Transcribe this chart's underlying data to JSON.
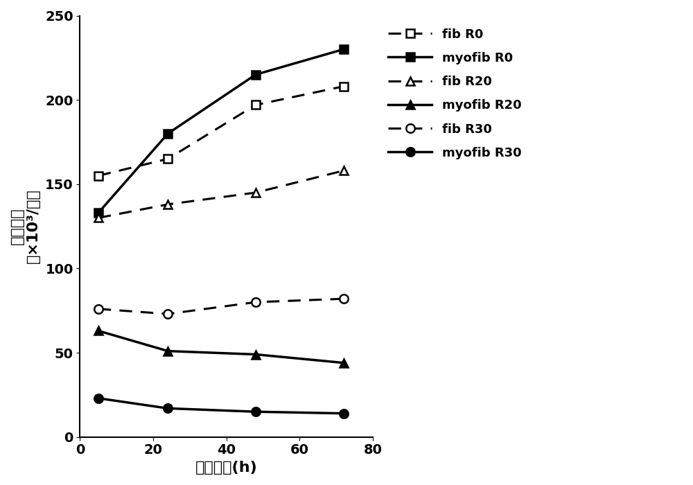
{
  "x": [
    5,
    24,
    48,
    72
  ],
  "series": {
    "fib R0": {
      "y": [
        155,
        165,
        197,
        208
      ],
      "linestyle": "--",
      "marker": "s",
      "markerfacecolor": "white",
      "linewidth": 2.2,
      "markersize": 9,
      "color": "black"
    },
    "myofib R0": {
      "y": [
        133,
        180,
        215,
        230
      ],
      "linestyle": "-",
      "marker": "s",
      "markerfacecolor": "black",
      "linewidth": 2.5,
      "markersize": 9,
      "color": "black"
    },
    "fib R20": {
      "y": [
        130,
        138,
        145,
        158
      ],
      "linestyle": "--",
      "marker": "^",
      "markerfacecolor": "white",
      "linewidth": 2.2,
      "markersize": 9,
      "color": "black"
    },
    "myofib R20": {
      "y": [
        63,
        51,
        49,
        44
      ],
      "linestyle": "-",
      "marker": "^",
      "markerfacecolor": "black",
      "linewidth": 2.5,
      "markersize": 9,
      "color": "black"
    },
    "fib R30": {
      "y": [
        76,
        73,
        80,
        82
      ],
      "linestyle": "--",
      "marker": "o",
      "markerfacecolor": "white",
      "linewidth": 2.2,
      "markersize": 9,
      "color": "black"
    },
    "myofib R30": {
      "y": [
        23,
        17,
        15,
        14
      ],
      "linestyle": "-",
      "marker": "o",
      "markerfacecolor": "black",
      "linewidth": 2.5,
      "markersize": 9,
      "color": "black"
    }
  },
  "xlabel": "培养时间(h)",
  "ylabel_line1": "细胞浓度",
  "ylabel_line2": "（×10³/孔）",
  "xlim": [
    0,
    80
  ],
  "ylim": [
    0,
    250
  ],
  "xticks": [
    0,
    20,
    40,
    60,
    80
  ],
  "yticks": [
    0,
    50,
    100,
    150,
    200,
    250
  ],
  "axis_label_fontsize": 16,
  "tick_fontsize": 14,
  "legend_fontsize": 13,
  "legend_order": [
    "fib R0",
    "myofib R0",
    "fib R20",
    "myofib R20",
    "fib R30",
    "myofib R30"
  ],
  "background_color": "#ffffff"
}
